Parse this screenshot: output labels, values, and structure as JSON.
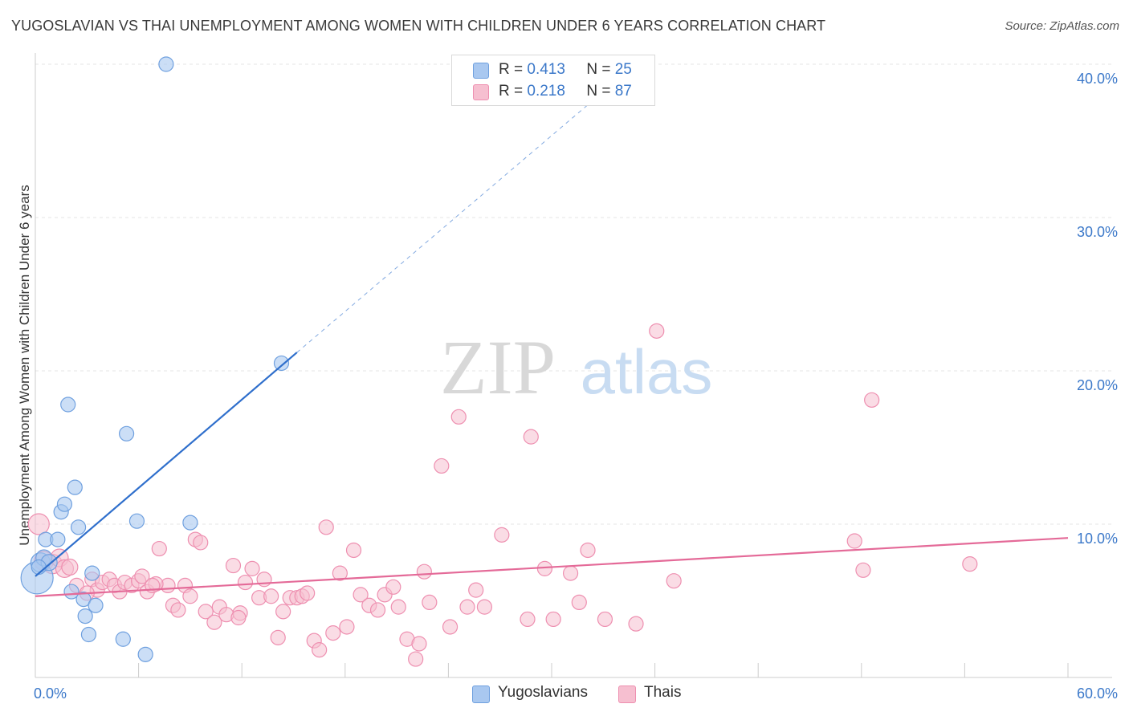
{
  "title": "YUGOSLAVIAN VS THAI UNEMPLOYMENT AMONG WOMEN WITH CHILDREN UNDER 6 YEARS CORRELATION CHART",
  "source": "Source: ZipAtlas.com",
  "watermark": {
    "zip": "ZIP",
    "atlas": "atlas"
  },
  "legend": {
    "r_label": "R =",
    "n_label": "N =",
    "rows": [
      {
        "name": "Yugoslavians",
        "r": "0.413",
        "n": "25"
      },
      {
        "name": "Thais",
        "r": "0.218",
        "n": "87"
      }
    ]
  },
  "colors": {
    "yugoslavians_fill": "#a9c8f0",
    "yugoslavians_stroke": "#6fa0df",
    "yugoslavians_line": "#2f6fcc",
    "thais_fill": "#f6bfd0",
    "thais_stroke": "#ee8fb0",
    "thais_line": "#e46a98",
    "axis_text": "#3b78c9",
    "grid": "#e6e6e6"
  },
  "chart_data": {
    "type": "scatter",
    "title": "YUGOSLAVIAN VS THAI UNEMPLOYMENT AMONG WOMEN WITH CHILDREN UNDER 6 YEARS CORRELATION CHART",
    "xlabel": "",
    "ylabel": "Unemployment Among Women with Children Under 6 years",
    "xlim": [
      0,
      60
    ],
    "ylim": [
      0,
      40
    ],
    "x_tick_labels": [
      "0.0%",
      "60.0%"
    ],
    "y_ticks": [
      10,
      20,
      30,
      40
    ],
    "y_tick_labels": [
      "10.0%",
      "20.0%",
      "30.0%",
      "40.0%"
    ],
    "grid": true,
    "series": [
      {
        "name": "Yugoslavians",
        "points": [
          [
            0.1,
            6.5,
            20
          ],
          [
            0.3,
            7.5,
            12
          ],
          [
            0.5,
            7.8,
            10
          ],
          [
            0.8,
            7.5,
            10
          ],
          [
            0.6,
            9.0,
            9
          ],
          [
            1.3,
            9.0,
            9
          ],
          [
            1.5,
            10.8,
            9
          ],
          [
            1.7,
            11.3,
            9
          ],
          [
            1.9,
            17.8,
            9
          ],
          [
            2.3,
            12.4,
            9
          ],
          [
            2.5,
            9.8,
            9
          ],
          [
            2.1,
            5.6,
            9
          ],
          [
            2.8,
            5.1,
            9
          ],
          [
            2.9,
            4.0,
            9
          ],
          [
            3.1,
            2.8,
            9
          ],
          [
            3.3,
            6.8,
            9
          ],
          [
            3.5,
            4.7,
            9
          ],
          [
            5.1,
            2.5,
            9
          ],
          [
            5.3,
            15.9,
            9
          ],
          [
            5.9,
            10.2,
            9
          ],
          [
            6.4,
            1.5,
            9
          ],
          [
            7.6,
            40.0,
            9
          ],
          [
            9.0,
            10.1,
            9
          ],
          [
            14.3,
            20.5,
            9
          ],
          [
            0.2,
            7.2,
            9
          ]
        ]
      },
      {
        "name": "Thais",
        "points": [
          [
            0.2,
            10.0,
            13
          ],
          [
            0.5,
            7.6,
            12
          ],
          [
            1.0,
            7.4,
            12
          ],
          [
            1.4,
            7.8,
            11
          ],
          [
            1.7,
            7.1,
            11
          ],
          [
            2.0,
            7.2,
            10
          ],
          [
            2.4,
            6.0,
            9
          ],
          [
            3.3,
            6.4,
            9
          ],
          [
            3.6,
            5.7,
            9
          ],
          [
            3.9,
            6.2,
            9
          ],
          [
            4.3,
            6.4,
            9
          ],
          [
            4.6,
            6.0,
            9
          ],
          [
            4.9,
            5.6,
            9
          ],
          [
            5.2,
            6.2,
            9
          ],
          [
            5.6,
            6.0,
            9
          ],
          [
            6.0,
            6.3,
            9
          ],
          [
            6.2,
            6.6,
            9
          ],
          [
            6.5,
            5.6,
            9
          ],
          [
            7.2,
            8.4,
            9
          ],
          [
            7.7,
            6.0,
            9
          ],
          [
            8.0,
            4.7,
            9
          ],
          [
            8.3,
            4.4,
            9
          ],
          [
            8.7,
            6.0,
            9
          ],
          [
            9.0,
            5.3,
            9
          ],
          [
            9.3,
            9.0,
            9
          ],
          [
            9.6,
            8.8,
            9
          ],
          [
            9.9,
            4.3,
            9
          ],
          [
            10.4,
            3.6,
            9
          ],
          [
            10.7,
            4.6,
            9
          ],
          [
            11.1,
            4.1,
            9
          ],
          [
            11.5,
            7.3,
            9
          ],
          [
            11.9,
            4.2,
            9
          ],
          [
            12.2,
            6.2,
            9
          ],
          [
            12.6,
            7.1,
            9
          ],
          [
            13.0,
            5.2,
            9
          ],
          [
            13.3,
            6.4,
            9
          ],
          [
            13.7,
            5.3,
            9
          ],
          [
            14.1,
            2.6,
            9
          ],
          [
            14.4,
            4.3,
            9
          ],
          [
            14.8,
            5.2,
            9
          ],
          [
            15.2,
            5.2,
            9
          ],
          [
            15.5,
            5.3,
            9
          ],
          [
            15.8,
            5.5,
            9
          ],
          [
            16.2,
            2.4,
            9
          ],
          [
            16.5,
            1.8,
            9
          ],
          [
            16.9,
            9.8,
            9
          ],
          [
            17.3,
            2.9,
            9
          ],
          [
            17.7,
            6.8,
            9
          ],
          [
            18.1,
            3.3,
            9
          ],
          [
            18.5,
            8.3,
            9
          ],
          [
            18.9,
            5.4,
            9
          ],
          [
            19.4,
            4.7,
            9
          ],
          [
            19.9,
            4.4,
            9
          ],
          [
            20.3,
            5.4,
            9
          ],
          [
            20.8,
            5.9,
            9
          ],
          [
            21.1,
            4.6,
            9
          ],
          [
            21.6,
            2.5,
            9
          ],
          [
            22.1,
            1.2,
            9
          ],
          [
            22.6,
            6.9,
            9
          ],
          [
            22.9,
            4.9,
            9
          ],
          [
            23.6,
            13.8,
            9
          ],
          [
            24.1,
            3.3,
            9
          ],
          [
            24.6,
            17.0,
            9
          ],
          [
            25.1,
            4.6,
            9
          ],
          [
            25.6,
            5.7,
            9
          ],
          [
            26.1,
            4.6,
            9
          ],
          [
            27.1,
            9.3,
            9
          ],
          [
            28.6,
            3.8,
            9
          ],
          [
            28.8,
            15.7,
            9
          ],
          [
            29.6,
            7.1,
            9
          ],
          [
            30.1,
            3.8,
            9
          ],
          [
            31.1,
            6.8,
            9
          ],
          [
            31.6,
            4.9,
            9
          ],
          [
            32.1,
            8.3,
            9
          ],
          [
            33.1,
            3.8,
            9
          ],
          [
            34.9,
            3.5,
            9
          ],
          [
            36.1,
            22.6,
            9
          ],
          [
            37.1,
            6.3,
            9
          ],
          [
            47.6,
            8.9,
            9
          ],
          [
            48.1,
            7.0,
            9
          ],
          [
            48.6,
            18.1,
            9
          ],
          [
            54.3,
            7.4,
            9
          ],
          [
            3.0,
            5.5,
            9
          ],
          [
            11.8,
            3.9,
            9
          ],
          [
            22.3,
            2.2,
            9
          ],
          [
            7.0,
            6.1,
            9
          ],
          [
            6.8,
            6.0,
            9
          ]
        ]
      }
    ],
    "trend_lines": [
      {
        "name": "Yugoslavians",
        "x_start": 0,
        "y_start": 6.6,
        "x_solid_end": 15.2,
        "y_solid_end": 21.2,
        "x_dash_end": 35.5,
        "y_dash_end": 40.6
      },
      {
        "name": "Thais",
        "x_start": 0,
        "y_start": 5.3,
        "x_end": 60,
        "y_end": 9.1
      }
    ]
  }
}
